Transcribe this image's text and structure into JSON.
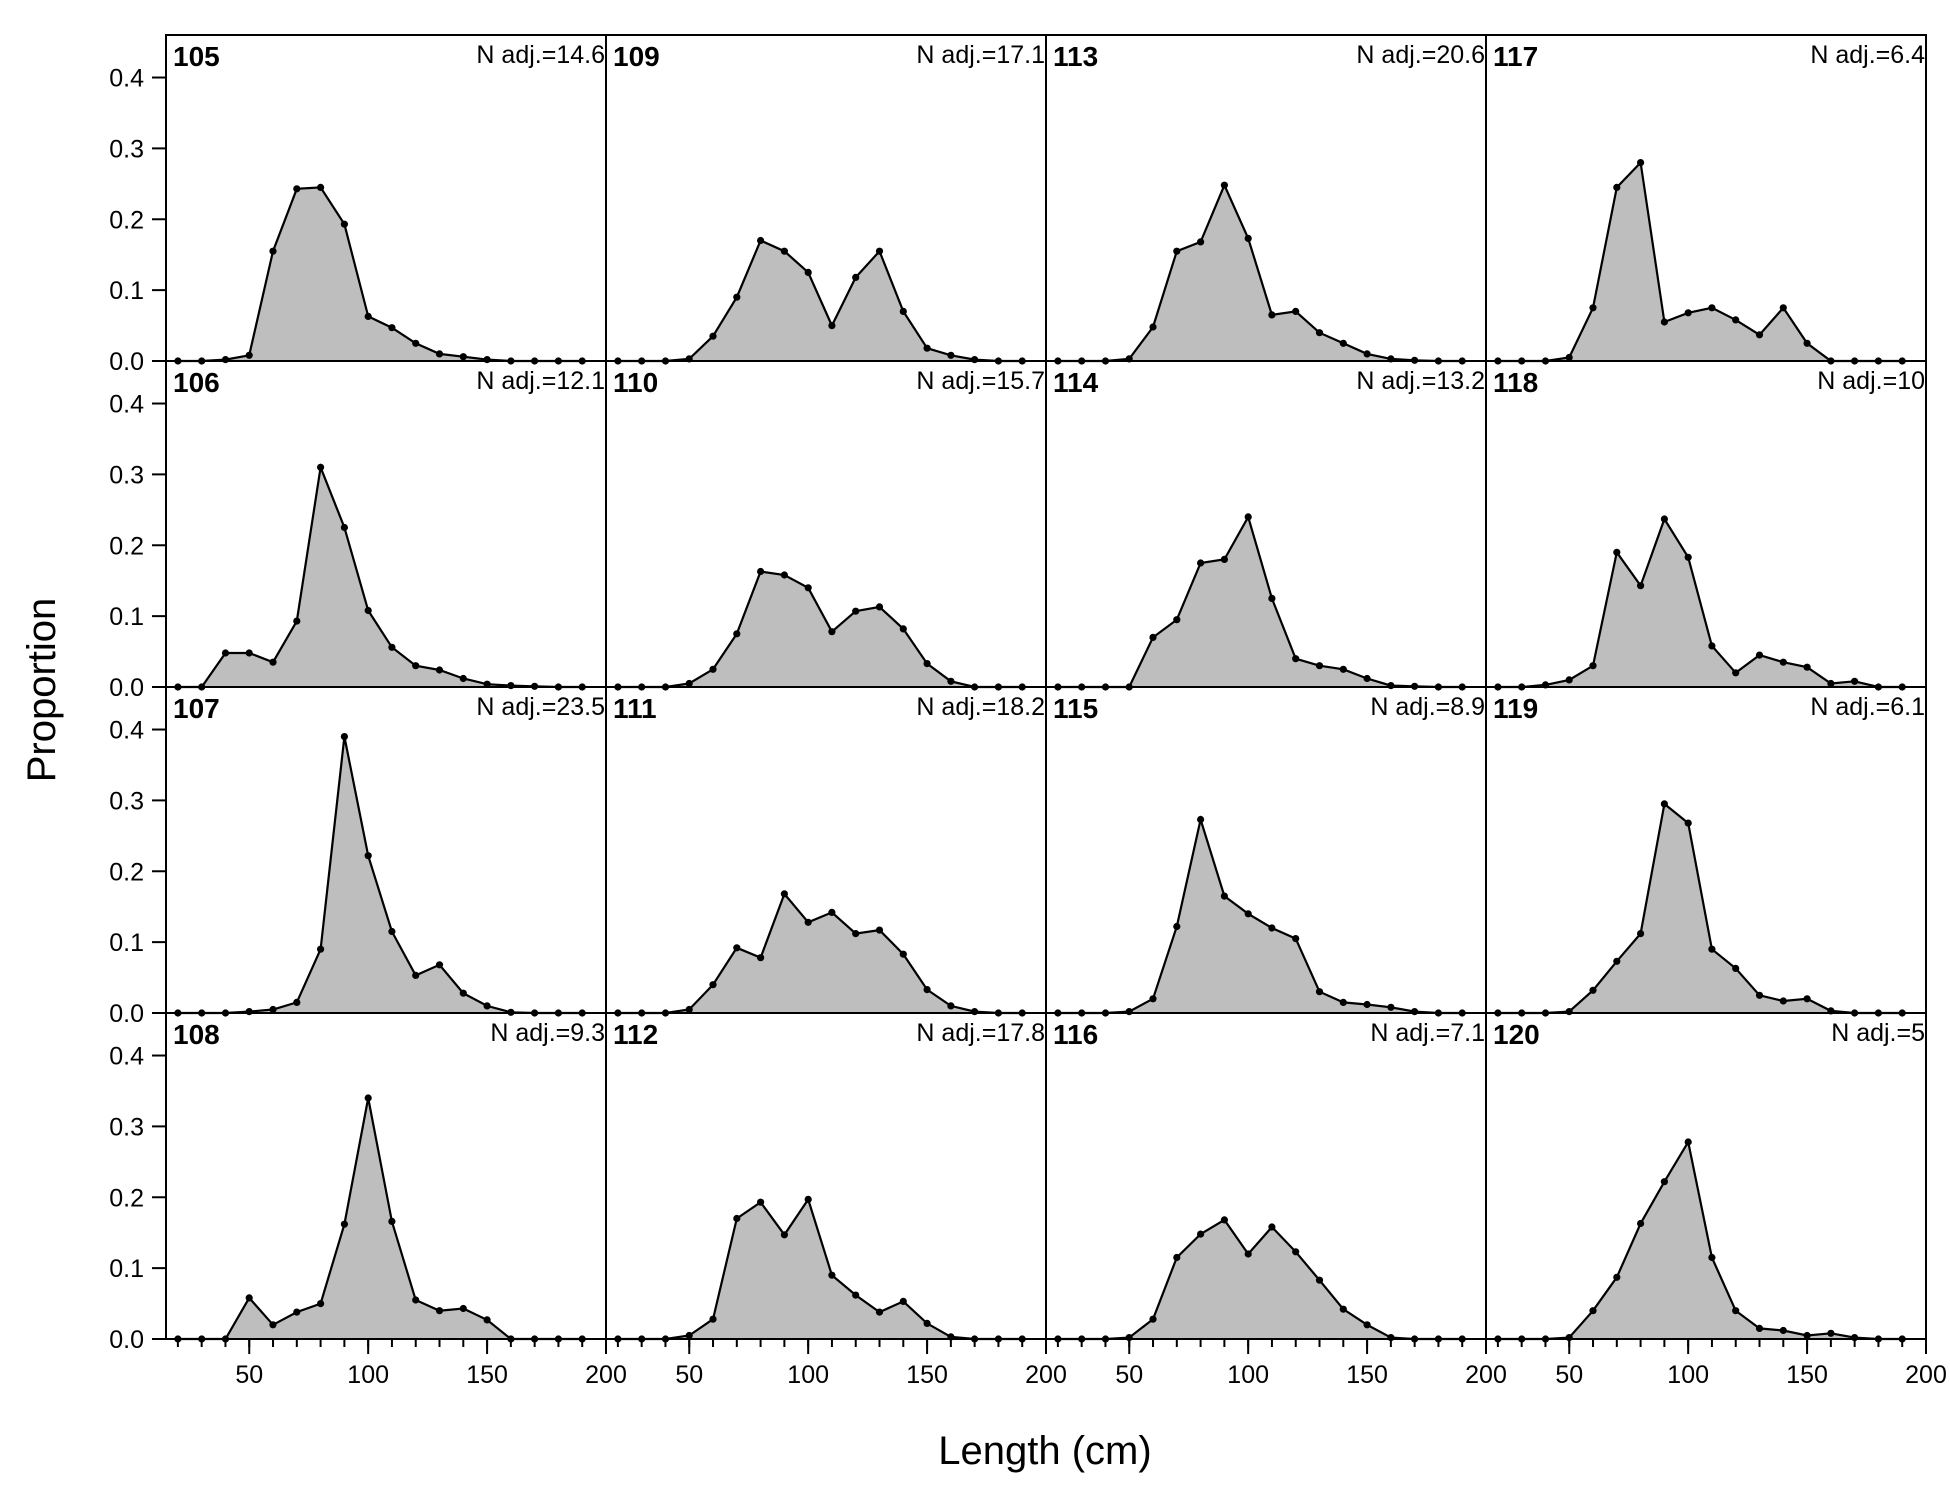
{
  "chart_data": {
    "type": "area",
    "xlabel": "Length (cm)",
    "ylabel": "Proportion",
    "xlim": [
      15,
      200
    ],
    "ylim": [
      0,
      0.46
    ],
    "x_ticks": [
      50,
      100,
      150,
      200
    ],
    "y_ticks": [
      0.0,
      0.1,
      0.2,
      0.3,
      0.4
    ],
    "y_tick_labels": [
      "0.0",
      "0.1",
      "0.2",
      "0.3",
      "0.4"
    ],
    "grid": false,
    "fill_color": "#bebebe",
    "line_color": "#000000",
    "x": [
      20,
      30,
      40,
      50,
      60,
      70,
      80,
      90,
      100,
      110,
      120,
      130,
      140,
      150,
      160,
      170,
      180,
      190
    ],
    "panels": [
      {
        "label": "105",
        "n_adj": "N adj.=14.6",
        "values": [
          0,
          0,
          0.002,
          0.008,
          0.155,
          0.243,
          0.245,
          0.193,
          0.063,
          0.047,
          0.025,
          0.01,
          0.006,
          0.002,
          0,
          0,
          0,
          0
        ]
      },
      {
        "label": "106",
        "n_adj": "N adj.=12.1",
        "values": [
          0,
          0,
          0.048,
          0.048,
          0.035,
          0.093,
          0.31,
          0.225,
          0.108,
          0.056,
          0.03,
          0.024,
          0.012,
          0.004,
          0.002,
          0.001,
          0,
          0
        ]
      },
      {
        "label": "107",
        "n_adj": "N adj.=23.5",
        "values": [
          0,
          0,
          0,
          0.002,
          0.005,
          0.015,
          0.09,
          0.39,
          0.222,
          0.115,
          0.053,
          0.068,
          0.028,
          0.01,
          0.001,
          0,
          0,
          0
        ]
      },
      {
        "label": "108",
        "n_adj": "N adj.=9.3",
        "values": [
          0,
          0,
          0,
          0.058,
          0.02,
          0.038,
          0.05,
          0.162,
          0.34,
          0.166,
          0.055,
          0.04,
          0.043,
          0.027,
          0,
          0,
          0,
          0
        ]
      },
      {
        "label": "109",
        "n_adj": "N adj.=17.1",
        "values": [
          0,
          0,
          0,
          0.003,
          0.035,
          0.09,
          0.17,
          0.155,
          0.125,
          0.05,
          0.118,
          0.155,
          0.07,
          0.018,
          0.008,
          0.002,
          0,
          0
        ]
      },
      {
        "label": "110",
        "n_adj": "N adj.=15.7",
        "values": [
          0,
          0,
          0,
          0.005,
          0.025,
          0.075,
          0.163,
          0.158,
          0.14,
          0.078,
          0.107,
          0.113,
          0.082,
          0.033,
          0.008,
          0,
          0,
          0
        ]
      },
      {
        "label": "111",
        "n_adj": "N adj.=18.2",
        "values": [
          0,
          0,
          0,
          0.005,
          0.04,
          0.092,
          0.078,
          0.168,
          0.128,
          0.142,
          0.112,
          0.117,
          0.083,
          0.033,
          0.01,
          0.002,
          0,
          0
        ]
      },
      {
        "label": "112",
        "n_adj": "N adj.=17.8",
        "values": [
          0,
          0,
          0,
          0.005,
          0.028,
          0.17,
          0.193,
          0.147,
          0.197,
          0.09,
          0.062,
          0.038,
          0.053,
          0.022,
          0.003,
          0,
          0,
          0
        ]
      },
      {
        "label": "113",
        "n_adj": "N adj.=20.6",
        "values": [
          0,
          0,
          0,
          0.003,
          0.048,
          0.155,
          0.168,
          0.248,
          0.173,
          0.065,
          0.07,
          0.04,
          0.025,
          0.01,
          0.003,
          0.001,
          0,
          0
        ]
      },
      {
        "label": "114",
        "n_adj": "N adj.=13.2",
        "values": [
          0,
          0,
          0,
          0,
          0.07,
          0.095,
          0.175,
          0.18,
          0.24,
          0.125,
          0.04,
          0.03,
          0.025,
          0.012,
          0.002,
          0.001,
          0,
          0
        ]
      },
      {
        "label": "115",
        "n_adj": "N adj.=8.9",
        "values": [
          0,
          0,
          0,
          0.002,
          0.02,
          0.122,
          0.273,
          0.165,
          0.14,
          0.12,
          0.105,
          0.03,
          0.015,
          0.012,
          0.008,
          0.002,
          0,
          0
        ]
      },
      {
        "label": "116",
        "n_adj": "N adj.=7.1",
        "values": [
          0,
          0,
          0,
          0.002,
          0.028,
          0.115,
          0.148,
          0.168,
          0.12,
          0.158,
          0.123,
          0.083,
          0.042,
          0.02,
          0.002,
          0,
          0,
          0
        ]
      },
      {
        "label": "117",
        "n_adj": "N adj.=6.4",
        "values": [
          0,
          0,
          0,
          0.005,
          0.075,
          0.245,
          0.28,
          0.055,
          0.068,
          0.075,
          0.058,
          0.037,
          0.075,
          0.025,
          0,
          0,
          0,
          0
        ]
      },
      {
        "label": "118",
        "n_adj": "N adj.=10",
        "values": [
          0,
          0,
          0.003,
          0.01,
          0.03,
          0.19,
          0.143,
          0.237,
          0.183,
          0.058,
          0.02,
          0.045,
          0.035,
          0.028,
          0.005,
          0.008,
          0,
          0
        ]
      },
      {
        "label": "119",
        "n_adj": "N adj.=6.1",
        "values": [
          0,
          0,
          0,
          0.002,
          0.032,
          0.073,
          0.112,
          0.295,
          0.268,
          0.09,
          0.063,
          0.025,
          0.017,
          0.02,
          0.003,
          0,
          0,
          0
        ]
      },
      {
        "label": "120",
        "n_adj": "N adj.=5",
        "values": [
          0,
          0,
          0,
          0.002,
          0.04,
          0.087,
          0.163,
          0.222,
          0.278,
          0.115,
          0.04,
          0.015,
          0.012,
          0.005,
          0.008,
          0.002,
          0,
          0
        ]
      }
    ]
  }
}
